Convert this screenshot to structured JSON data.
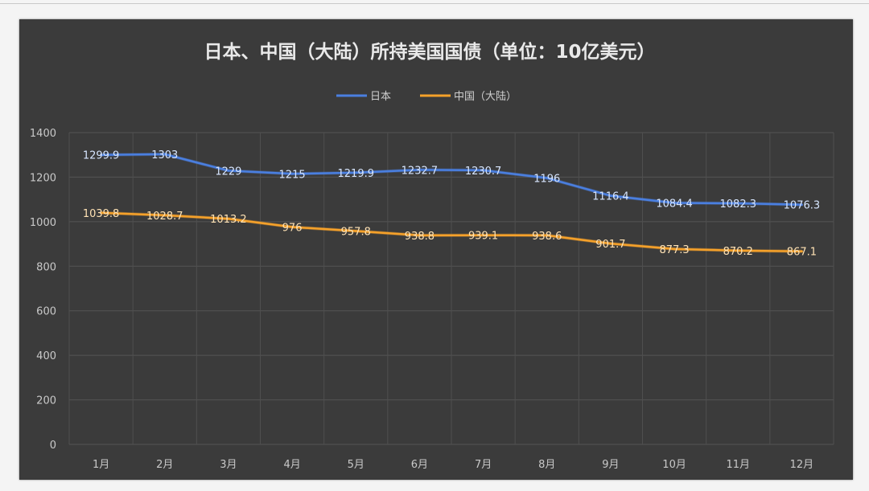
{
  "chart_data": {
    "type": "line",
    "title": "日本、中国（大陆）所持美国国债（单位：10亿美元）",
    "categories": [
      "1月",
      "2月",
      "3月",
      "4月",
      "5月",
      "6月",
      "7月",
      "8月",
      "9月",
      "10月",
      "11月",
      "12月"
    ],
    "series": [
      {
        "name": "日本",
        "color": "#4a7fe0",
        "values": [
          1299.9,
          1303,
          1229,
          1215,
          1219.9,
          1232.7,
          1230.7,
          1196,
          1116.4,
          1084.4,
          1082.3,
          1076.3
        ],
        "labels": [
          "1299.9",
          "1303",
          "1229",
          "1215",
          "1219.9",
          "1232.7",
          "1230.7",
          "1196",
          "1116.4",
          "1084.4",
          "1082.3",
          "1076.3"
        ]
      },
      {
        "name": "中国（大陆）",
        "color": "#f5a12a",
        "values": [
          1039.8,
          1028.7,
          1013.2,
          976,
          957.8,
          938.8,
          939.1,
          938.6,
          901.7,
          877.3,
          870.2,
          867.1
        ],
        "labels": [
          "1039.8",
          "1028.7",
          "1013.2",
          "976",
          "957.8",
          "938.8",
          "939.1",
          "938.6",
          "901.7",
          "877.3",
          "870.2",
          "867.1"
        ]
      }
    ],
    "ylim": [
      0,
      1400
    ],
    "yticks": [
      0,
      200,
      400,
      600,
      800,
      1000,
      1200,
      1400
    ],
    "grid": true,
    "legend_position": "top-center"
  }
}
